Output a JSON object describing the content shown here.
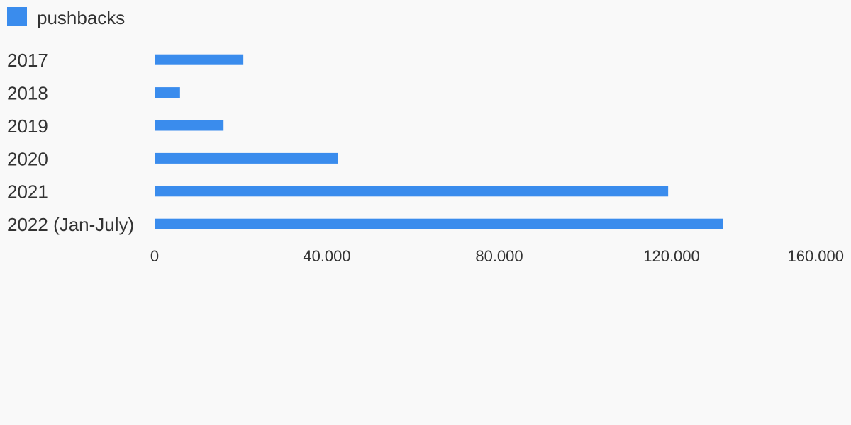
{
  "chart_data": {
    "type": "bar",
    "orientation": "horizontal",
    "categories": [
      "2017",
      "2018",
      "2019",
      "2020",
      "2021",
      "2022 (Jan-July)"
    ],
    "series": [
      {
        "name": "pushbacks",
        "color": "#3a8ced",
        "values": [
          20600,
          5900,
          16000,
          42600,
          119200,
          131900
        ]
      }
    ],
    "xlim": [
      0,
      160000
    ],
    "xticks": [
      0,
      {
        "value": 40000,
        "label": "40.000"
      },
      {
        "value": 80000,
        "label": "80.000"
      },
      {
        "value": 120000,
        "label": "120.000"
      },
      {
        "value": 160000,
        "label": "160.000"
      }
    ],
    "grid": false,
    "legend": "top-left"
  }
}
